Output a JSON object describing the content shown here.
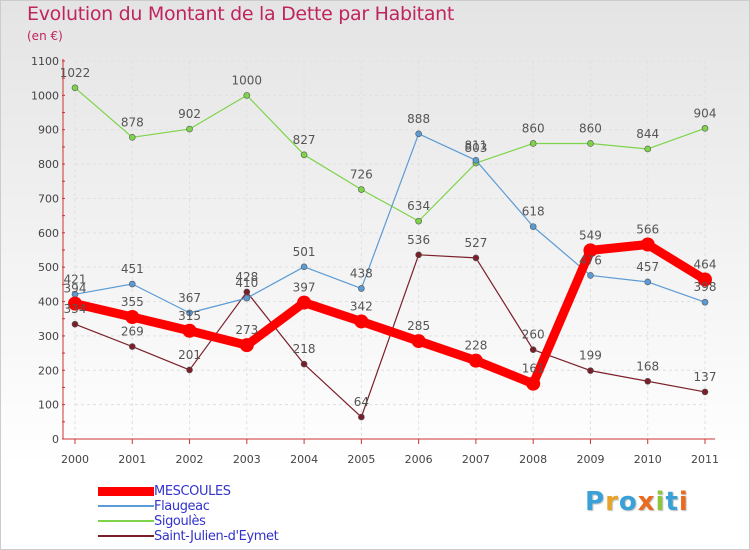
{
  "header": {
    "title": "Evolution du Montant de la Dette par Habitant",
    "subtitle": "(en €)"
  },
  "brand": {
    "logo_text": "Proxiti",
    "letter_colors": [
      "#3aa0d8",
      "#e8a32b",
      "#3aa0d8",
      "#ea6b1f",
      "#8cc63f",
      "#3aa0d8",
      "#ea6b1f"
    ]
  },
  "chart_data": {
    "type": "line",
    "x": [
      "2000",
      "2001",
      "2002",
      "2003",
      "2004",
      "2005",
      "2006",
      "2007",
      "2008",
      "2009",
      "2010",
      "2011"
    ],
    "ylim": [
      0,
      1100
    ],
    "yticks": [
      0,
      100,
      200,
      300,
      400,
      500,
      600,
      700,
      800,
      900,
      1000,
      1100
    ],
    "grid": true,
    "legend_position": "bottom-left",
    "xlabel": "",
    "ylabel": "",
    "series": [
      {
        "name": "MESCOULES",
        "color": "#ff0000",
        "values": [
          394,
          355,
          315,
          273,
          397,
          342,
          285,
          228,
          161,
          549,
          566,
          464
        ]
      },
      {
        "name": "Flaugeac",
        "color": "#5b9bd5",
        "values": [
          421,
          451,
          367,
          410,
          501,
          438,
          888,
          811,
          618,
          476,
          457,
          398
        ]
      },
      {
        "name": "Sigoulès",
        "color": "#7dd44a",
        "values": [
          1022,
          878,
          902,
          1000,
          827,
          726,
          634,
          803,
          860,
          860,
          844,
          904
        ]
      },
      {
        "name": "Saint-Julien-d'Eymet",
        "color": "#7a1f2a",
        "values": [
          334,
          269,
          201,
          428,
          218,
          64,
          536,
          527,
          260,
          199,
          168,
          137
        ]
      }
    ]
  }
}
